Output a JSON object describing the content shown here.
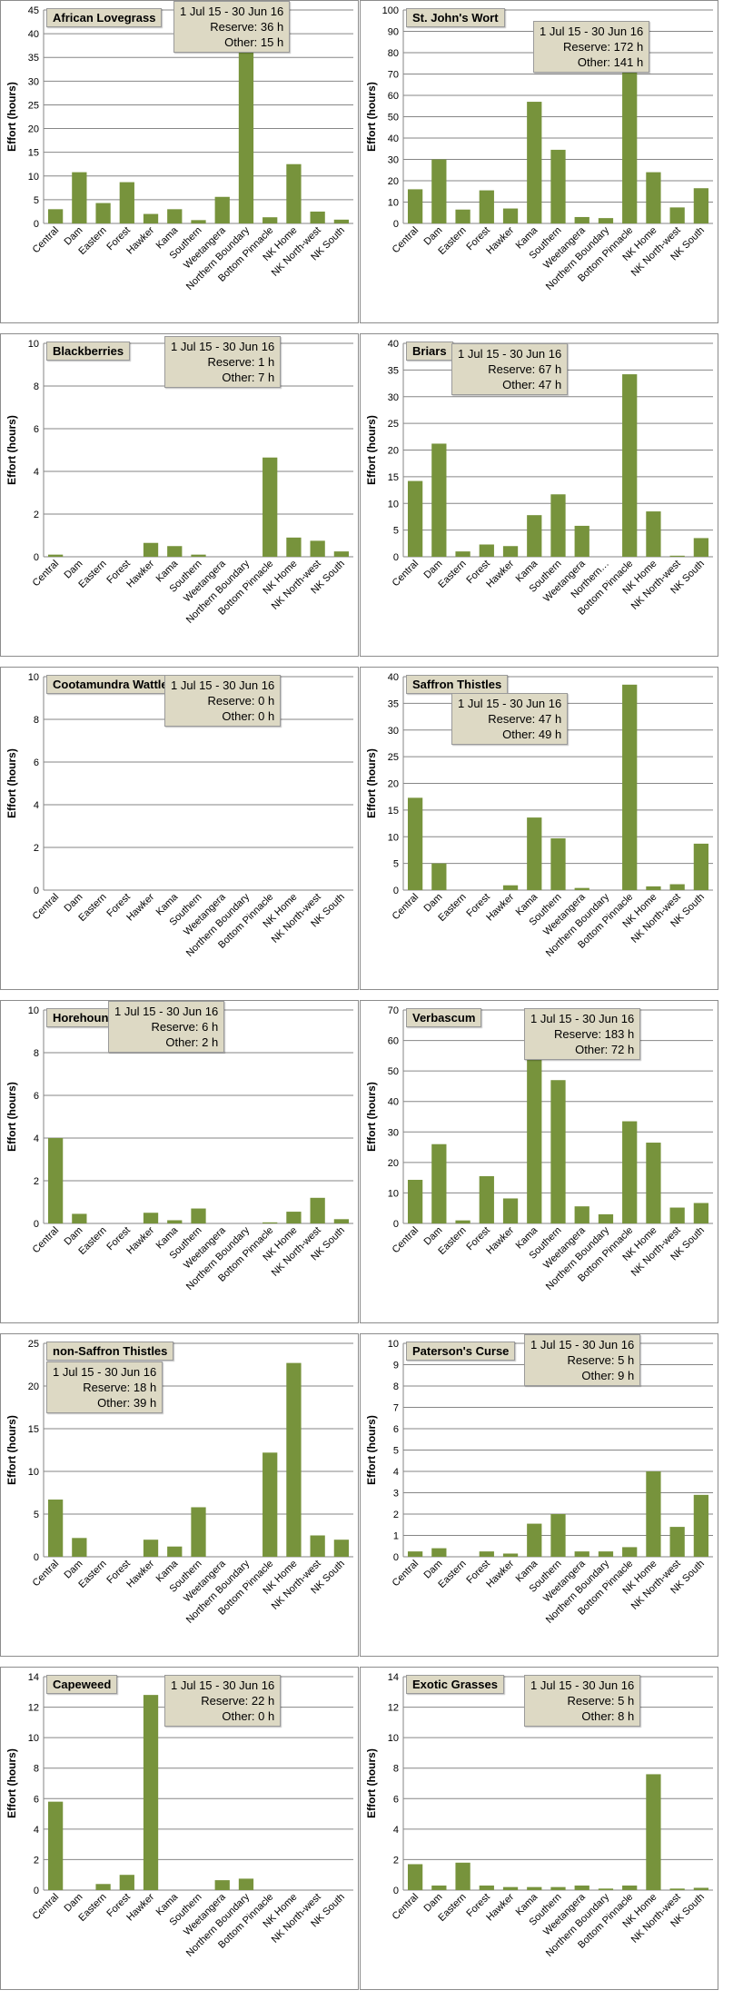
{
  "date_range": "1 Jul 15  -  30 Jun 16",
  "reserve_prefix": "Reserve:",
  "other_prefix": "Other:",
  "colors": {
    "bar": "#77933c",
    "label_bg": "#ddd9c4",
    "gridline": "#868686",
    "border": "#8c8c8c"
  },
  "chart_data": [
    {
      "type": "bar",
      "title": "African Lovegrass",
      "ylabel": "Effort  (hours)",
      "ylim": [
        0,
        45
      ],
      "ystep": 5,
      "reserve": "36 h",
      "other": "15 h",
      "categories": [
        "Central",
        "Dam",
        "Eastern",
        "Forest",
        "Hawker",
        "Kama",
        "Southern",
        "Weetangera",
        "Northern Boundary",
        "Bottom Pinnacle",
        "NK Home",
        "NK North-west",
        "NK South"
      ],
      "values": [
        3,
        10.8,
        4.3,
        8.7,
        2,
        3,
        0.7,
        5.6,
        41,
        1.3,
        12.5,
        2.5,
        0.8
      ]
    },
    {
      "type": "bar",
      "title": "St. John's Wort",
      "ylabel": "Effort  (hours)",
      "ylim": [
        0,
        100
      ],
      "ystep": 10,
      "reserve": "172 h",
      "other": "141 h",
      "categories": [
        "Central",
        "Dam",
        "Eastern",
        "Forest",
        "Hawker",
        "Kama",
        "Southern",
        "Weetangera",
        "Northern Boundary",
        "Bottom Pinnacle",
        "NK Home",
        "NK North-west",
        "NK South"
      ],
      "values": [
        16,
        30,
        6.5,
        15.5,
        7,
        57,
        34.5,
        3,
        2.5,
        92,
        24,
        7.5,
        16.5
      ]
    },
    {
      "type": "bar",
      "title": "Blackberries",
      "ylabel": "Effort  (hours)",
      "ylim": [
        0,
        10
      ],
      "ystep": 2,
      "reserve": "1 h",
      "other": "7 h",
      "categories": [
        "Central",
        "Dam",
        "Eastern",
        "Forest",
        "Hawker",
        "Kama",
        "Southern",
        "Weetangera",
        "Northern Boundary",
        "Bottom Pinnacle",
        "NK Home",
        "NK North-west",
        "NK South"
      ],
      "values": [
        0.1,
        0,
        0,
        0,
        0.65,
        0.5,
        0.1,
        0,
        0,
        4.65,
        0.9,
        0.75,
        0.25
      ]
    },
    {
      "type": "bar",
      "title": "Briars",
      "ylabel": "Effort  (hours)",
      "ylim": [
        0,
        40
      ],
      "ystep": 5,
      "reserve": "67 h",
      "other": "47 h",
      "categories": [
        "Central",
        "Dam",
        "Eastern",
        "Forest",
        "Hawker",
        "Kama",
        "Southern",
        "Weetangera",
        "Northern…",
        "Bottom Pinnacle",
        "NK Home",
        "NK North-west",
        "NK South"
      ],
      "values": [
        14.2,
        21.2,
        1,
        2.3,
        2,
        7.8,
        11.7,
        5.8,
        0,
        34.2,
        8.5,
        0.2,
        3.5
      ]
    },
    {
      "type": "bar",
      "title": "Cootamundra Wattle",
      "ylabel": "Effort  (hours)",
      "ylim": [
        0,
        10
      ],
      "ystep": 2,
      "reserve": "0 h",
      "other": "0 h",
      "categories": [
        "Central",
        "Dam",
        "Eastern",
        "Forest",
        "Hawker",
        "Kama",
        "Southern",
        "Weetangera",
        "Northern Boundary",
        "Bottom Pinnacle",
        "NK Home",
        "NK North-west",
        "NK South"
      ],
      "values": [
        0,
        0,
        0,
        0,
        0,
        0,
        0,
        0,
        0,
        0,
        0,
        0,
        0
      ]
    },
    {
      "type": "bar",
      "title": "Saffron Thistles",
      "ylabel": "Effort  (hours)",
      "ylim": [
        0,
        40
      ],
      "ystep": 5,
      "reserve": "47 h",
      "other": "49 h",
      "categories": [
        "Central",
        "Dam",
        "Eastern",
        "Forest",
        "Hawker",
        "Kama",
        "Southern",
        "Weetangera",
        "Northern Boundary",
        "Bottom Pinnacle",
        "NK Home",
        "NK North-west",
        "NK South"
      ],
      "values": [
        17.3,
        5,
        0,
        0,
        0.9,
        13.6,
        9.7,
        0.4,
        0,
        38.5,
        0.7,
        1.1,
        8.7
      ]
    },
    {
      "type": "bar",
      "title": "Horehound",
      "ylabel": "Effort  (hours)",
      "ylim": [
        0,
        10
      ],
      "ystep": 2,
      "reserve": "6 h",
      "other": "2 h",
      "categories": [
        "Central",
        "Dam",
        "Eastern",
        "Forest",
        "Hawker",
        "Kama",
        "Southern",
        "Weetangera",
        "Northern Boundary",
        "Bottom Pinnacle",
        "NK Home",
        "NK North-west",
        "NK South"
      ],
      "values": [
        4,
        0.45,
        0,
        0,
        0.5,
        0.15,
        0.7,
        0,
        0,
        0.05,
        0.55,
        1.2,
        0.2
      ]
    },
    {
      "type": "bar",
      "title": "Verbascum",
      "ylabel": "Effort  (hours)",
      "ylim": [
        0,
        70
      ],
      "ystep": 10,
      "reserve": "183 h",
      "other": "72 h",
      "categories": [
        "Central",
        "Dam",
        "Eastern",
        "Forest",
        "Hawker",
        "Kama",
        "Southern",
        "Weetangera",
        "Northern Boundary",
        "Bottom Pinnacle",
        "NK Home",
        "NK North-west",
        "NK South"
      ],
      "values": [
        14.3,
        26,
        1,
        15.5,
        8.2,
        62.5,
        47,
        5.6,
        3,
        33.5,
        26.5,
        5.2,
        6.7
      ]
    },
    {
      "type": "bar",
      "title": "non-Saffron Thistles",
      "ylabel": "Effort  (hours)",
      "ylim": [
        0,
        25
      ],
      "ystep": 5,
      "reserve": "18 h",
      "other": "39 h",
      "categories": [
        "Central",
        "Dam",
        "Eastern",
        "Forest",
        "Hawker",
        "Kama",
        "Southern",
        "Weetangera",
        "Northern Boundary",
        "Bottom Pinnacle",
        "NK Home",
        "NK North-west",
        "NK South"
      ],
      "values": [
        6.7,
        2.2,
        0,
        0,
        2,
        1.2,
        5.8,
        0,
        0,
        12.2,
        22.7,
        2.5,
        2
      ]
    },
    {
      "type": "bar",
      "title": "Paterson's Curse",
      "ylabel": "Effort  (hours)",
      "ylim": [
        0,
        10
      ],
      "ystep": 1,
      "reserve": "5 h",
      "other": "9 h",
      "categories": [
        "Central",
        "Dam",
        "Eastern",
        "Forest",
        "Hawker",
        "Kama",
        "Southern",
        "Weetangera",
        "Northern Boundary",
        "Bottom Pinnacle",
        "NK Home",
        "NK North-west",
        "NK South"
      ],
      "values": [
        0.25,
        0.4,
        0,
        0.25,
        0.15,
        1.55,
        2,
        0.25,
        0.25,
        0.45,
        4,
        1.4,
        2.9
      ]
    },
    {
      "type": "bar",
      "title": "Capeweed",
      "ylabel": "Effort  (hours)",
      "ylim": [
        0,
        14
      ],
      "ystep": 2,
      "reserve": "22 h",
      "other": "0 h",
      "categories": [
        "Central",
        "Dam",
        "Eastern",
        "Forest",
        "Hawker",
        "Kama",
        "Southern",
        "Weetangera",
        "Northern Boundary",
        "Bottom Pinnacle",
        "NK Home",
        "NK North-west",
        "NK South"
      ],
      "values": [
        5.8,
        0,
        0.4,
        1,
        12.8,
        0,
        0,
        0.65,
        0.75,
        0,
        0,
        0,
        0
      ]
    },
    {
      "type": "bar",
      "title": "Exotic Grasses",
      "ylabel": "Effort  (hours)",
      "ylim": [
        0,
        14
      ],
      "ystep": 2,
      "reserve": "5 h",
      "other": "8 h",
      "categories": [
        "Central",
        "Dam",
        "Eastern",
        "Forest",
        "Hawker",
        "Kama",
        "Southern",
        "Weetangera",
        "Northern Boundary",
        "Bottom Pinnacle",
        "NK Home",
        "NK North-west",
        "NK South"
      ],
      "values": [
        1.7,
        0.3,
        1.8,
        0.3,
        0.2,
        0.2,
        0.2,
        0.3,
        0.1,
        0.3,
        7.6,
        0.1,
        0.15
      ]
    }
  ]
}
